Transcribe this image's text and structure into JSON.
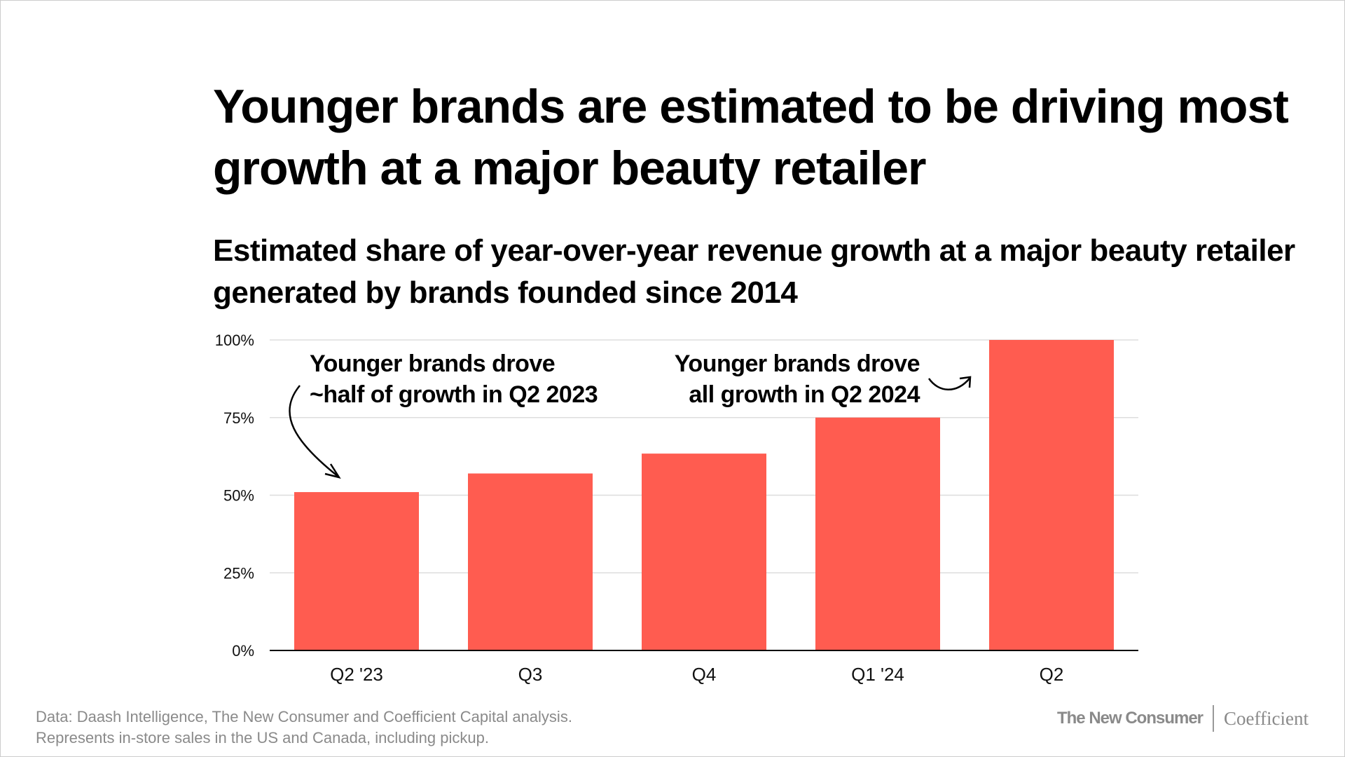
{
  "title": "Younger brands are estimated to be driving most growth at a major beauty retailer",
  "subtitle": "Estimated share of year-over-year revenue growth at a major beauty retailer generated by brands founded since 2014",
  "chart_data": {
    "type": "bar",
    "categories": [
      "Q2 '23",
      "Q3",
      "Q4",
      "Q1 '24",
      "Q2"
    ],
    "values": [
      51,
      57,
      63.4,
      75,
      100
    ],
    "ylim": [
      0,
      100
    ],
    "yticks": [
      0,
      25,
      50,
      75,
      100
    ],
    "ytick_labels": [
      "0%",
      "25%",
      "50%",
      "75%",
      "100%"
    ],
    "grid": true,
    "bar_color": "#ff5c50",
    "annotations": [
      {
        "lines": [
          "Younger brands drove",
          "~half of growth in Q2 2023"
        ],
        "target": "Q2 '23"
      },
      {
        "lines": [
          "Younger brands drove",
          "all growth in Q2 2024"
        ],
        "target": "Q2"
      }
    ]
  },
  "footer": {
    "line1": "Data: Daash Intelligence, The New Consumer and Coefficient Capital analysis.",
    "line2": "Represents in-store sales in the US and Canada, including pickup."
  },
  "logos": {
    "left": "The New Consumer",
    "right": "Coefficient"
  }
}
